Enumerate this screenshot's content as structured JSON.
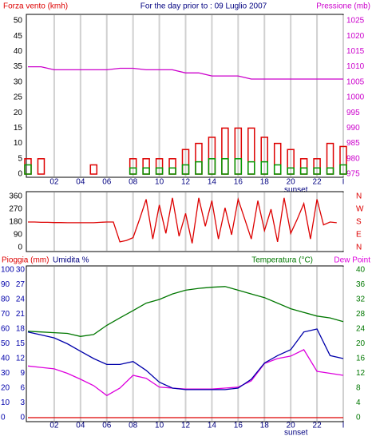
{
  "chart_data": [
    {
      "type": "bar",
      "title": "For the day prior to : 09 Luglio 2007",
      "ylabel": "Forza vento (kmh)",
      "ylabel_color": "#dd0000",
      "y2label": "Pressione (mb)",
      "y2label_color": "#cc00cc",
      "x": [
        0,
        1,
        2,
        3,
        4,
        5,
        6,
        7,
        8,
        9,
        10,
        11,
        12,
        13,
        14,
        15,
        16,
        17,
        18,
        19,
        20,
        21,
        22,
        23,
        24
      ],
      "xlim": [
        0,
        24
      ],
      "xticks": [
        {
          "value": 2,
          "label": "02"
        },
        {
          "value": 4,
          "label": "04"
        },
        {
          "value": 6,
          "label": "06"
        },
        {
          "value": 8,
          "label": "08"
        },
        {
          "value": 10,
          "label": "10"
        },
        {
          "value": 12,
          "label": "12"
        },
        {
          "value": 14,
          "label": "14"
        },
        {
          "value": 16,
          "label": "16"
        },
        {
          "value": 18,
          "label": "18"
        },
        {
          "value": 20,
          "label": "20"
        },
        {
          "value": 22,
          "label": "22"
        },
        {
          "value": 24,
          "label": "I"
        }
      ],
      "annotation": {
        "text": "sunset",
        "x": 20.4
      },
      "ylim": [
        0,
        50
      ],
      "yticks": [
        0,
        5,
        10,
        15,
        20,
        25,
        30,
        35,
        40,
        45,
        50
      ],
      "ytick_color": "#000000",
      "y2lim": [
        975,
        1025
      ],
      "y2ticks": [
        975,
        980,
        985,
        990,
        995,
        1000,
        1005,
        1010,
        1015,
        1020,
        1025
      ],
      "y2tick_color": "#cc00cc",
      "grid_color": "#d0d0d0",
      "series": [
        {
          "type": "bar",
          "color": "#dd0000",
          "axis": "y",
          "values": [
            5,
            5,
            0,
            0,
            0,
            3,
            0,
            0,
            5,
            5,
            5,
            5,
            8,
            10,
            12,
            15,
            15,
            15,
            12,
            10,
            8,
            5,
            5,
            10,
            9
          ]
        },
        {
          "type": "bar",
          "color": "#009900",
          "axis": "y",
          "values": [
            3,
            0,
            0,
            0,
            0,
            0,
            0,
            0,
            2,
            2,
            2,
            2,
            3,
            4,
            5,
            5,
            5,
            4,
            4,
            3,
            2,
            2,
            2,
            2,
            3
          ]
        },
        {
          "type": "line",
          "color": "#cc00cc",
          "axis": "y2",
          "values": [
            1010,
            1010,
            1009,
            1009,
            1009,
            1009,
            1009,
            1009.5,
            1009.5,
            1009,
            1009,
            1009,
            1008,
            1008,
            1007,
            1007,
            1007,
            1006,
            1006,
            1006,
            1006,
            1006,
            1006,
            1006,
            1006
          ]
        }
      ]
    },
    {
      "type": "line",
      "x": [
        0,
        0.5,
        1,
        1.5,
        2,
        2.5,
        3,
        3.5,
        4,
        4.5,
        5,
        5.5,
        6,
        6.5,
        7,
        7.5,
        8,
        8.5,
        9,
        9.5,
        10,
        10.5,
        11,
        11.5,
        12,
        12.5,
        13,
        13.5,
        14,
        14.5,
        15,
        15.5,
        16,
        16.5,
        17,
        17.5,
        18,
        18.5,
        19,
        19.5,
        20,
        20.5,
        21,
        21.5,
        22,
        22.5,
        23,
        23.5
      ],
      "xlim": [
        0,
        24
      ],
      "xticks": [
        2,
        4,
        6,
        8,
        10,
        12,
        14,
        16,
        18,
        20,
        22,
        24
      ],
      "ylim": [
        0,
        360
      ],
      "yticks": [
        0,
        90,
        180,
        270,
        360
      ],
      "ytick_color": "#000000",
      "y2lim": [
        0,
        360
      ],
      "y2ticks": [
        {
          "value": 0,
          "label": "N"
        },
        {
          "value": 90,
          "label": "E"
        },
        {
          "value": 180,
          "label": "S"
        },
        {
          "value": 270,
          "label": "W"
        },
        {
          "value": 360,
          "label": "N"
        }
      ],
      "y2tick_color": "#dd0000",
      "grid_color": "#d0d0d0",
      "series": [
        {
          "type": "line",
          "color": "#dd0000",
          "axis": "y",
          "values": [
            180,
            180,
            178,
            178,
            176,
            176,
            175,
            175,
            175,
            175,
            175,
            178,
            180,
            180,
            40,
            50,
            70,
            200,
            340,
            60,
            300,
            100,
            350,
            80,
            240,
            30,
            350,
            150,
            330,
            60,
            280,
            90,
            340,
            200,
            60,
            330,
            120,
            270,
            40,
            350,
            100,
            200,
            310,
            60,
            340,
            160,
            180,
            175
          ]
        }
      ]
    },
    {
      "type": "line",
      "rain_label": "Pioggia (mm)",
      "rain_label_color": "#dd0000",
      "ylabel": "Umidita %",
      "ylabel_color": "#000080",
      "y2label": "Temperatura (°C)",
      "y2label_color": "#007700",
      "y3label": "Dew Point",
      "y3label_color": "#dd00dd",
      "x": [
        0,
        1,
        2,
        3,
        4,
        5,
        6,
        7,
        8,
        9,
        10,
        11,
        12,
        13,
        14,
        15,
        16,
        17,
        18,
        19,
        20,
        21,
        22,
        23,
        24
      ],
      "xlim": [
        0,
        24
      ],
      "xticks": [
        {
          "value": 2,
          "label": "02"
        },
        {
          "value": 4,
          "label": "04"
        },
        {
          "value": 6,
          "label": "06"
        },
        {
          "value": 8,
          "label": "08"
        },
        {
          "value": 10,
          "label": "10"
        },
        {
          "value": 12,
          "label": "12"
        },
        {
          "value": 14,
          "label": "14"
        },
        {
          "value": 16,
          "label": "16"
        },
        {
          "value": 18,
          "label": "18"
        },
        {
          "value": 20,
          "label": "20"
        },
        {
          "value": 22,
          "label": "22"
        },
        {
          "value": 24,
          "label": "I"
        }
      ],
      "annotation": {
        "text": "sunset",
        "x": 20.4
      },
      "ylim": [
        0,
        100
      ],
      "yticks": [
        0,
        10,
        20,
        30,
        40,
        50,
        60,
        70,
        80,
        90,
        100
      ],
      "ytick_color": "#0000aa",
      "y3lim": [
        0,
        30
      ],
      "y3ticks": [
        0,
        3,
        6,
        9,
        12,
        15,
        18,
        21,
        24,
        27,
        30
      ],
      "y3tick_color": "#0000aa",
      "y2lim": [
        0,
        40
      ],
      "y2ticks": [
        0,
        4,
        8,
        12,
        16,
        20,
        24,
        28,
        32,
        36,
        40
      ],
      "y2tick_color": "#007700",
      "grid_color": "#d0d0d0",
      "series": [
        {
          "type": "line",
          "color": "#dd0000",
          "axis": "y",
          "values": [
            0,
            0,
            0,
            0,
            0,
            0,
            0,
            0,
            0,
            0,
            0,
            0,
            0,
            0,
            0,
            0,
            0,
            0,
            0,
            0,
            0,
            0,
            0,
            0,
            0
          ]
        },
        {
          "type": "line",
          "color": "#007700",
          "axis": "y2",
          "values": [
            23.4,
            23.2,
            23,
            22.8,
            22,
            22.5,
            25,
            27,
            29,
            31,
            32,
            33.5,
            34.5,
            35,
            35.3,
            35.5,
            34.5,
            33.5,
            32.5,
            31,
            29.5,
            28.5,
            27.5,
            27,
            26
          ]
        },
        {
          "type": "line",
          "color": "#dd00dd",
          "axis": "y3",
          "values": [
            10.5,
            10.2,
            9.9,
            9,
            7.8,
            6.5,
            4.5,
            6,
            8.6,
            8,
            6.2,
            6,
            5.8,
            5.8,
            5.8,
            6,
            6.2,
            7.5,
            11,
            12,
            12.5,
            13.8,
            9.4,
            9,
            8.6
          ]
        },
        {
          "type": "line",
          "color": "#0000aa",
          "axis": "y",
          "values": [
            58,
            56,
            54,
            50,
            45,
            40,
            36,
            36,
            38,
            32,
            24,
            20,
            19,
            19,
            19,
            19,
            20,
            26,
            37,
            42,
            46,
            58,
            60,
            42,
            40
          ]
        }
      ]
    }
  ]
}
